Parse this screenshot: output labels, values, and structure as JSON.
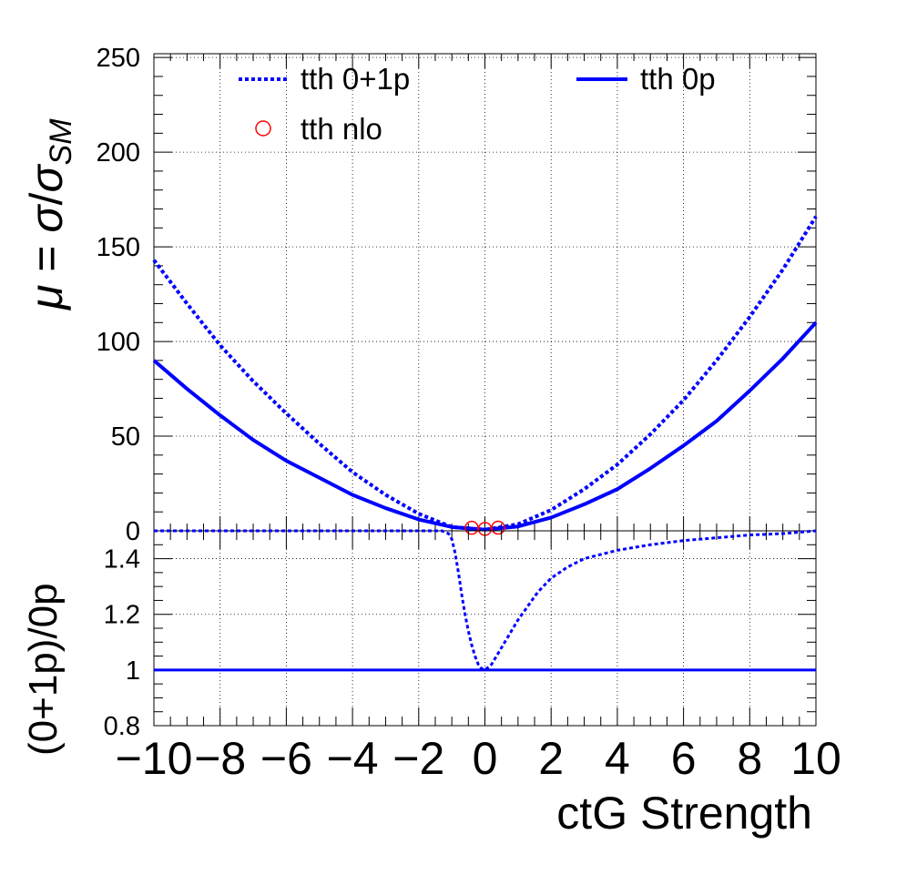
{
  "chart_data": [
    {
      "type": "line",
      "panel": "top",
      "ylabel": "μ = σ/σSM",
      "ylabel_parts": {
        "mu": "μ",
        "eq": " = ",
        "sigma": "σ",
        "slash": "/",
        "sigma2": "σ",
        "sub": "SM"
      },
      "xlim": [
        -10,
        10
      ],
      "ylim": [
        0,
        252
      ],
      "grid": true,
      "yticks": [
        "0",
        "50",
        "100",
        "150",
        "200",
        "250"
      ],
      "legend_position": "top",
      "legend": [
        {
          "label": "tth 0+1p",
          "style": "dotted",
          "color": "#0000ff"
        },
        {
          "label": "tth 0p",
          "style": "solid",
          "color": "#0000ff"
        },
        {
          "label": "tth nlo",
          "style": "open-circle",
          "color": "#ff0000"
        }
      ],
      "series": [
        {
          "name": "tth 0+1p",
          "style": "dotted",
          "color": "#0000ff",
          "x": [
            -10,
            -9,
            -8,
            -7,
            -6,
            -5,
            -4,
            -3,
            -2,
            -1,
            0,
            1,
            2,
            3,
            4,
            5,
            6,
            7,
            8,
            9,
            10
          ],
          "y": [
            143,
            120,
            98,
            79,
            62,
            46,
            31,
            19,
            9,
            2,
            0.6,
            3.5,
            11,
            22,
            35,
            51,
            69,
            90,
            113,
            138,
            166
          ]
        },
        {
          "name": "tth 0p",
          "style": "solid",
          "color": "#0000ff",
          "x": [
            -10,
            -9,
            -8,
            -7,
            -6,
            -5,
            -4,
            -3,
            -2,
            -1,
            0,
            1,
            2,
            3,
            4,
            5,
            6,
            7,
            8,
            9,
            10
          ],
          "y": [
            90,
            75,
            61,
            48,
            37,
            28,
            19,
            12,
            6,
            2,
            0.6,
            2.3,
            7,
            14,
            22,
            33,
            45,
            58,
            74,
            91,
            110
          ]
        },
        {
          "name": "tth nlo",
          "style": "open-circle",
          "color": "#ff0000",
          "x": [
            -0.4,
            0,
            0.4
          ],
          "y": [
            1.6,
            1.0,
            1.7
          ]
        }
      ]
    },
    {
      "type": "line",
      "panel": "bottom",
      "xlabel": "ctG Strength",
      "ylabel": "(0+1p)/0p",
      "xlim": [
        -10,
        10
      ],
      "ylim": [
        0.8,
        1.5
      ],
      "grid": true,
      "xticks": [
        "−10",
        "−8",
        "−6",
        "−4",
        "−2",
        "0",
        "2",
        "4",
        "6",
        "8",
        "10"
      ],
      "yticks": [
        "0.8",
        "1",
        "1.2",
        "1.4"
      ],
      "series": [
        {
          "name": "",
          "style": "dotted",
          "color": "#0000ff",
          "x": [
            -10,
            -5,
            -1.3,
            -1.1,
            -1.0,
            -0.9,
            -0.8,
            -0.7,
            -0.6,
            -0.5,
            -0.4,
            -0.3,
            -0.2,
            -0.1,
            0,
            0.2,
            0.4,
            0.6,
            0.8,
            1.0,
            1.3,
            1.6,
            2.0,
            2.5,
            3.0,
            4.0,
            5.0,
            6.0,
            7.0,
            8.0,
            9.0,
            10
          ],
          "y": [
            1.5,
            1.5,
            1.5,
            1.49,
            1.47,
            1.42,
            1.35,
            1.27,
            1.2,
            1.14,
            1.09,
            1.05,
            1.02,
            1.005,
            1.0,
            1.02,
            1.06,
            1.1,
            1.14,
            1.18,
            1.23,
            1.28,
            1.33,
            1.37,
            1.4,
            1.43,
            1.45,
            1.465,
            1.475,
            1.485,
            1.49,
            1.5
          ]
        },
        {
          "name": "",
          "style": "solid",
          "color": "#0000ff",
          "x": [
            -10,
            10
          ],
          "y": [
            1,
            1
          ]
        }
      ]
    }
  ]
}
